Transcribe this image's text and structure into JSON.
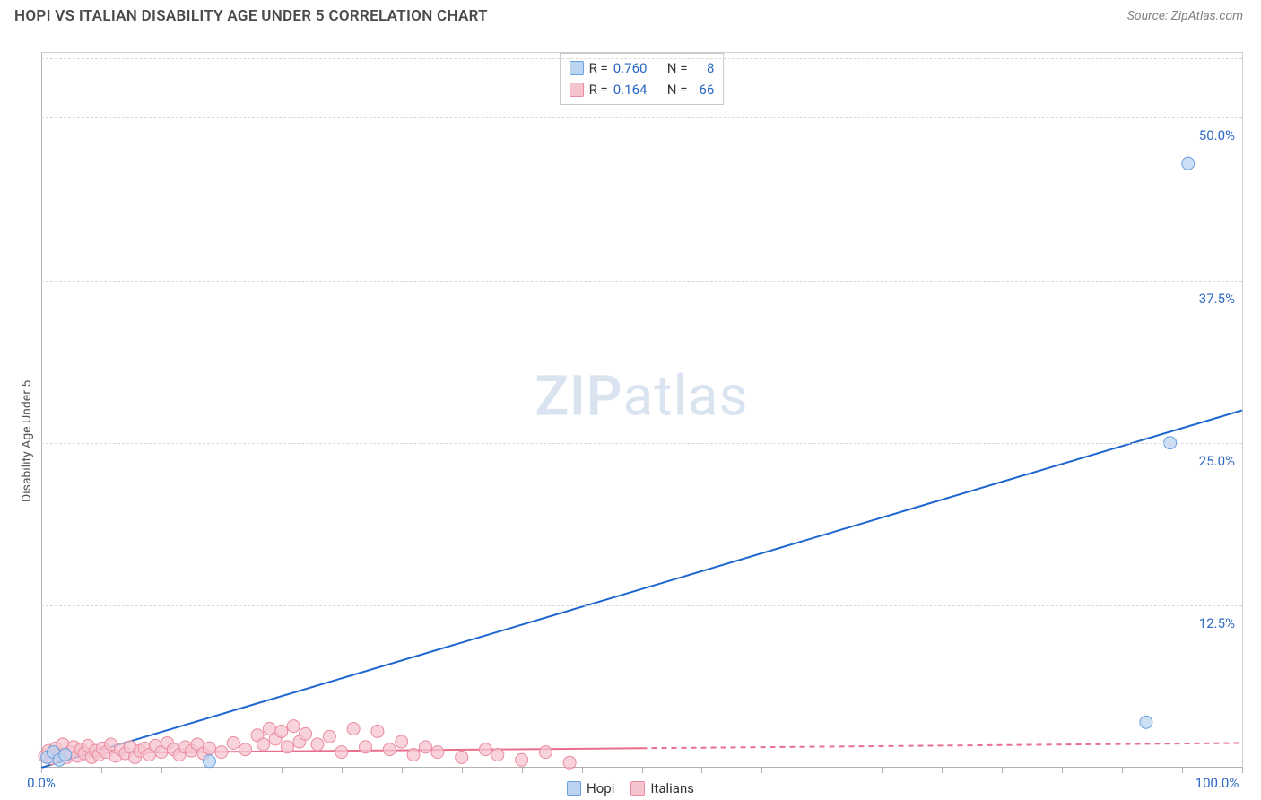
{
  "header": {
    "title": "HOPI VS ITALIAN DISABILITY AGE UNDER 5 CORRELATION CHART",
    "source_label": "Source: ZipAtlas.com"
  },
  "chart": {
    "type": "scatter-with-regression",
    "ylabel": "Disability Age Under 5",
    "xlim": [
      0,
      100
    ],
    "ylim": [
      0,
      55
    ],
    "yticks": [
      {
        "value": 12.5,
        "label": "12.5%"
      },
      {
        "value": 25.0,
        "label": "25.0%"
      },
      {
        "value": 37.5,
        "label": "37.5%"
      },
      {
        "value": 50.0,
        "label": "50.0%"
      }
    ],
    "xtick_labels": {
      "min": "0.0%",
      "max": "100.0%"
    },
    "xtick_minor_step": 5,
    "ytick_label_color": "#2b68c4",
    "xtick_label_color": "#2b68c4",
    "grid_color": "#d8d8d8",
    "background_color": "#ffffff",
    "watermark": {
      "text_bold": "ZIP",
      "text_light": "atlas",
      "color": "#d7e2ef",
      "opacity": 0.9
    },
    "series": [
      {
        "name": "Hopi",
        "marker_color_fill": "#bcd4f0",
        "marker_color_stroke": "#6a9edc",
        "marker_radius": 7,
        "line_color": "#1e66d0",
        "line_width": 2,
        "line_dash_after_x": null,
        "R": "0.760",
        "N": "8",
        "regression": {
          "x1": 0,
          "y1": 0,
          "x2": 100,
          "y2": 27.5
        },
        "points": [
          {
            "x": 0.5,
            "y": 0.8
          },
          {
            "x": 1.0,
            "y": 1.2
          },
          {
            "x": 1.5,
            "y": 0.6
          },
          {
            "x": 2.0,
            "y": 1.0
          },
          {
            "x": 14.0,
            "y": 0.5
          },
          {
            "x": 92.0,
            "y": 3.5
          },
          {
            "x": 94.0,
            "y": 25.0
          },
          {
            "x": 95.5,
            "y": 46.5
          }
        ]
      },
      {
        "name": "Italians",
        "marker_color_fill": "#f6c4cf",
        "marker_color_stroke": "#e98ba0",
        "marker_radius": 7,
        "line_color": "#e86f8d",
        "line_width": 2,
        "line_dash_after_x": 50,
        "R": "0.164",
        "N": "66",
        "regression": {
          "x1": 0,
          "y1": 1.1,
          "x2": 100,
          "y2": 1.9
        },
        "points": [
          {
            "x": 0.3,
            "y": 0.9
          },
          {
            "x": 0.6,
            "y": 1.3
          },
          {
            "x": 0.9,
            "y": 0.7
          },
          {
            "x": 1.2,
            "y": 1.5
          },
          {
            "x": 1.5,
            "y": 1.0
          },
          {
            "x": 1.8,
            "y": 1.8
          },
          {
            "x": 2.1,
            "y": 0.8
          },
          {
            "x": 2.4,
            "y": 1.2
          },
          {
            "x": 2.7,
            "y": 1.6
          },
          {
            "x": 3.0,
            "y": 0.9
          },
          {
            "x": 3.3,
            "y": 1.4
          },
          {
            "x": 3.6,
            "y": 1.1
          },
          {
            "x": 3.9,
            "y": 1.7
          },
          {
            "x": 4.2,
            "y": 0.8
          },
          {
            "x": 4.5,
            "y": 1.3
          },
          {
            "x": 4.8,
            "y": 1.0
          },
          {
            "x": 5.1,
            "y": 1.5
          },
          {
            "x": 5.4,
            "y": 1.2
          },
          {
            "x": 5.8,
            "y": 1.8
          },
          {
            "x": 6.2,
            "y": 0.9
          },
          {
            "x": 6.6,
            "y": 1.4
          },
          {
            "x": 7.0,
            "y": 1.1
          },
          {
            "x": 7.4,
            "y": 1.6
          },
          {
            "x": 7.8,
            "y": 0.8
          },
          {
            "x": 8.2,
            "y": 1.3
          },
          {
            "x": 8.6,
            "y": 1.5
          },
          {
            "x": 9.0,
            "y": 1.0
          },
          {
            "x": 9.5,
            "y": 1.7
          },
          {
            "x": 10.0,
            "y": 1.2
          },
          {
            "x": 10.5,
            "y": 1.9
          },
          {
            "x": 11.0,
            "y": 1.4
          },
          {
            "x": 11.5,
            "y": 1.0
          },
          {
            "x": 12.0,
            "y": 1.6
          },
          {
            "x": 12.5,
            "y": 1.3
          },
          {
            "x": 13.0,
            "y": 1.8
          },
          {
            "x": 13.5,
            "y": 1.1
          },
          {
            "x": 14.0,
            "y": 1.5
          },
          {
            "x": 15.0,
            "y": 1.2
          },
          {
            "x": 16.0,
            "y": 1.9
          },
          {
            "x": 17.0,
            "y": 1.4
          },
          {
            "x": 18.0,
            "y": 2.5
          },
          {
            "x": 18.5,
            "y": 1.8
          },
          {
            "x": 19.0,
            "y": 3.0
          },
          {
            "x": 19.5,
            "y": 2.2
          },
          {
            "x": 20.0,
            "y": 2.8
          },
          {
            "x": 20.5,
            "y": 1.6
          },
          {
            "x": 21.0,
            "y": 3.2
          },
          {
            "x": 21.5,
            "y": 2.0
          },
          {
            "x": 22.0,
            "y": 2.6
          },
          {
            "x": 23.0,
            "y": 1.8
          },
          {
            "x": 24.0,
            "y": 2.4
          },
          {
            "x": 25.0,
            "y": 1.2
          },
          {
            "x": 26.0,
            "y": 3.0
          },
          {
            "x": 27.0,
            "y": 1.6
          },
          {
            "x": 28.0,
            "y": 2.8
          },
          {
            "x": 29.0,
            "y": 1.4
          },
          {
            "x": 30.0,
            "y": 2.0
          },
          {
            "x": 31.0,
            "y": 1.0
          },
          {
            "x": 32.0,
            "y": 1.6
          },
          {
            "x": 33.0,
            "y": 1.2
          },
          {
            "x": 35.0,
            "y": 0.8
          },
          {
            "x": 37.0,
            "y": 1.4
          },
          {
            "x": 38.0,
            "y": 1.0
          },
          {
            "x": 40.0,
            "y": 0.6
          },
          {
            "x": 42.0,
            "y": 1.2
          },
          {
            "x": 44.0,
            "y": 0.4
          }
        ]
      }
    ],
    "legend_bottom": [
      {
        "label": "Hopi",
        "fill": "#bcd4f0",
        "stroke": "#6a9edc"
      },
      {
        "label": "Italians",
        "fill": "#f6c4cf",
        "stroke": "#e98ba0"
      }
    ]
  }
}
